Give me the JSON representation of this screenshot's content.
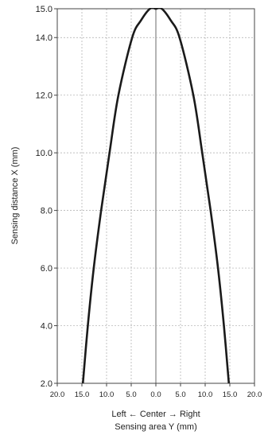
{
  "chart_data": {
    "type": "line",
    "xlabel_line1": "Left ← Center → Right",
    "xlabel_line2": "Sensing area Y (mm)",
    "ylabel": "Sensing distance X (mm)",
    "xlim": [
      -20,
      20
    ],
    "ylim": [
      2,
      15
    ],
    "x_ticks": [
      -20,
      -15,
      -10,
      -5,
      0,
      5,
      10,
      15,
      20
    ],
    "x_tick_labels": [
      "20.0",
      "15.0",
      "10.0",
      "5.0",
      "0.0",
      "5.0",
      "10.0",
      "15.0",
      "20.0"
    ],
    "y_ticks": [
      2,
      4,
      6,
      8,
      10,
      12,
      14,
      15
    ],
    "y_tick_labels": [
      "2.0",
      "4.0",
      "6.0",
      "8.0",
      "10.0",
      "12.0",
      "14.0",
      "15.0"
    ],
    "grid": true,
    "series": [
      {
        "points": [
          [
            -14.8,
            2.0
          ],
          [
            -13.8,
            4.0
          ],
          [
            -12.6,
            6.0
          ],
          [
            -11.1,
            8.0
          ],
          [
            -9.4,
            10.0
          ],
          [
            -7.6,
            12.0
          ],
          [
            -4.8,
            14.0
          ],
          [
            -3.0,
            14.6
          ],
          [
            -1.2,
            15.0
          ],
          [
            0.0,
            15.0
          ]
        ]
      },
      {
        "points": [
          [
            14.8,
            2.0
          ],
          [
            13.8,
            4.0
          ],
          [
            12.6,
            6.0
          ],
          [
            11.1,
            8.0
          ],
          [
            9.4,
            10.0
          ],
          [
            7.6,
            12.0
          ],
          [
            4.8,
            14.0
          ],
          [
            3.0,
            14.6
          ],
          [
            1.2,
            15.0
          ],
          [
            0.0,
            15.0
          ]
        ]
      },
      {
        "points": [
          [
            -2.8,
            15.4
          ],
          [
            -1.4,
            15.2
          ],
          [
            0.0,
            15.0
          ],
          [
            1.4,
            15.2
          ],
          [
            2.8,
            15.4
          ]
        ]
      }
    ],
    "colors": {
      "line": "#1a1a1a",
      "grid": "#aaaaaa",
      "frame": "#444444",
      "text": "#222222"
    }
  }
}
